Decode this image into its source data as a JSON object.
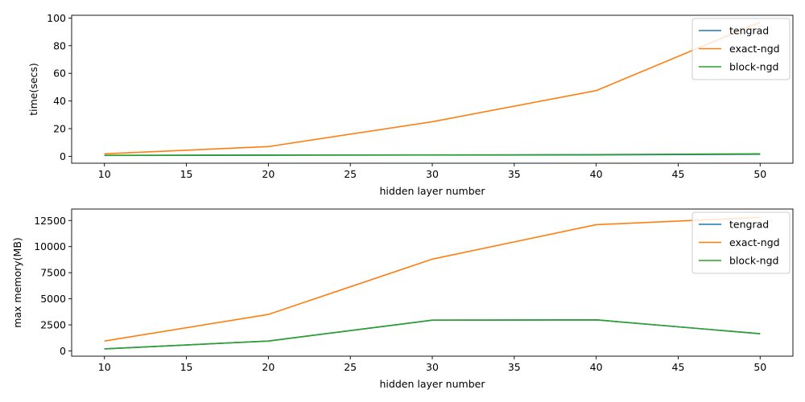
{
  "chart_data": [
    {
      "type": "line",
      "xlabel": "hidden layer number",
      "ylabel": "time(secs)",
      "x": [
        10,
        20,
        30,
        40,
        50
      ],
      "xlim": [
        8,
        52
      ],
      "ylim": [
        -5,
        102
      ],
      "xticks": [
        10,
        15,
        20,
        25,
        30,
        35,
        40,
        45,
        50
      ],
      "yticks": [
        0,
        20,
        40,
        60,
        80,
        100
      ],
      "legend_position": "top-right",
      "series": [
        {
          "name": "tengrad",
          "color": "#1f77b4",
          "values": [
            0.6,
            0.8,
            0.9,
            1.0,
            1.5
          ]
        },
        {
          "name": "exact-ngd",
          "color": "#ff7f0e",
          "values": [
            1.8,
            7.0,
            25.0,
            47.5,
            97.0
          ]
        },
        {
          "name": "block-ngd",
          "color": "#2ca02c",
          "values": [
            0.7,
            0.9,
            1.0,
            1.2,
            1.8
          ]
        }
      ]
    },
    {
      "type": "line",
      "xlabel": "hidden layer number",
      "ylabel": "max memory(MB)",
      "x": [
        10,
        20,
        30,
        40,
        50
      ],
      "xlim": [
        8,
        52
      ],
      "ylim": [
        -500,
        13600
      ],
      "xticks": [
        10,
        15,
        20,
        25,
        30,
        35,
        40,
        45,
        50
      ],
      "yticks": [
        0,
        2500,
        5000,
        7500,
        10000,
        12500
      ],
      "legend_position": "top-right",
      "series": [
        {
          "name": "tengrad",
          "color": "#1f77b4",
          "values": [
            200,
            950,
            2950,
            2980,
            1650
          ]
        },
        {
          "name": "exact-ngd",
          "color": "#ff7f0e",
          "values": [
            950,
            3500,
            8800,
            12100,
            12800
          ]
        },
        {
          "name": "block-ngd",
          "color": "#2ca02c",
          "values": [
            200,
            950,
            2950,
            2980,
            1650
          ]
        }
      ]
    }
  ]
}
